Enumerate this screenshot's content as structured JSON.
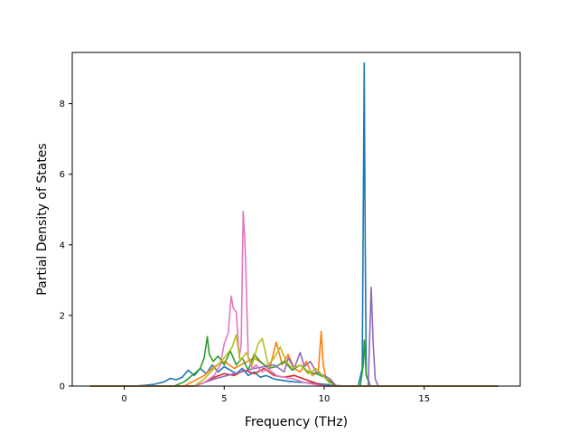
{
  "chart_data": {
    "type": "line",
    "title": "",
    "xlabel": "Frequency (THz)",
    "ylabel": "Partial Density of States",
    "xlim": [
      -2.6,
      19.8
    ],
    "ylim": [
      0,
      9.45
    ],
    "xticks": [
      0,
      5,
      10,
      15
    ],
    "yticks": [
      0,
      2,
      4,
      6,
      8
    ],
    "grid": false,
    "legend": "none",
    "series": [
      {
        "color": "#1f77b4",
        "x": [
          -1.7,
          0.5,
          1.0,
          1.5,
          2.0,
          2.3,
          2.6,
          2.9,
          3.2,
          3.5,
          3.8,
          4.1,
          4.4,
          4.7,
          5.0,
          5.3,
          5.6,
          5.9,
          6.2,
          6.5,
          6.8,
          7.1,
          7.5,
          8.0,
          8.5,
          9.0,
          9.5,
          10.0,
          10.5,
          11.0,
          11.7,
          11.9,
          12.0,
          12.05,
          12.1,
          12.2,
          12.3,
          12.6,
          18.7
        ],
        "y": [
          0,
          0,
          0.02,
          0.05,
          0.12,
          0.22,
          0.18,
          0.25,
          0.45,
          0.3,
          0.5,
          0.35,
          0.6,
          0.4,
          0.55,
          0.45,
          0.35,
          0.5,
          0.3,
          0.4,
          0.25,
          0.3,
          0.2,
          0.15,
          0.12,
          0.1,
          0.08,
          0.05,
          0.02,
          0,
          0,
          0.5,
          9.15,
          4.0,
          0.3,
          0.2,
          0,
          0,
          0
        ]
      },
      {
        "color": "#ff7f0e",
        "x": [
          -1.7,
          3.0,
          3.5,
          4.0,
          4.5,
          5.0,
          5.5,
          6.0,
          6.5,
          7.0,
          7.3,
          7.6,
          7.9,
          8.2,
          8.5,
          8.8,
          9.1,
          9.4,
          9.7,
          9.85,
          9.95,
          10.1,
          10.3,
          10.6,
          18.7
        ],
        "y": [
          0,
          0,
          0.15,
          0.3,
          0.55,
          0.7,
          0.5,
          0.65,
          0.8,
          0.6,
          0.55,
          1.25,
          0.6,
          0.9,
          0.5,
          0.4,
          0.7,
          0.3,
          0.4,
          1.55,
          0.6,
          0.2,
          0.15,
          0,
          0
        ]
      },
      {
        "color": "#2ca02c",
        "x": [
          -1.7,
          2.5,
          3.0,
          3.5,
          3.8,
          4.0,
          4.15,
          4.25,
          4.45,
          4.7,
          5.0,
          5.3,
          5.6,
          5.9,
          6.2,
          6.5,
          6.8,
          7.2,
          7.6,
          8.0,
          8.4,
          8.8,
          9.2,
          9.6,
          10.0,
          10.6,
          11.8,
          11.95,
          12.0,
          12.1,
          12.3,
          18.7
        ],
        "y": [
          0,
          0,
          0.12,
          0.35,
          0.5,
          0.8,
          1.4,
          0.9,
          0.7,
          0.85,
          0.6,
          1.0,
          0.6,
          0.8,
          0.45,
          0.9,
          0.7,
          0.5,
          0.55,
          0.7,
          0.45,
          0.6,
          0.4,
          0.35,
          0.25,
          0,
          0,
          0.6,
          1.3,
          0.3,
          0,
          0
        ]
      },
      {
        "color": "#d62728",
        "x": [
          -1.7,
          3.5,
          4.0,
          4.5,
          5.0,
          5.5,
          6.0,
          6.5,
          7.0,
          7.5,
          8.0,
          8.5,
          9.0,
          9.5,
          10.0,
          18.7
        ],
        "y": [
          0,
          0,
          0.1,
          0.25,
          0.35,
          0.3,
          0.45,
          0.35,
          0.5,
          0.3,
          0.25,
          0.3,
          0.2,
          0.1,
          0,
          0
        ]
      },
      {
        "color": "#9467bd",
        "x": [
          -1.7,
          3.5,
          4.5,
          5.5,
          6.5,
          7.5,
          8.0,
          8.2,
          8.5,
          8.8,
          9.0,
          9.3,
          9.6,
          10.0,
          10.3,
          10.6,
          12.2,
          12.35,
          12.45,
          12.55,
          12.7,
          18.7
        ],
        "y": [
          0,
          0,
          0.2,
          0.35,
          0.5,
          0.6,
          0.4,
          0.8,
          0.5,
          0.95,
          0.55,
          0.7,
          0.4,
          0.3,
          0.2,
          0,
          0,
          2.8,
          1.2,
          0.2,
          0,
          0
        ]
      },
      {
        "color": "#e377c2",
        "x": [
          -1.7,
          3.5,
          4.0,
          4.5,
          4.8,
          5.0,
          5.2,
          5.35,
          5.45,
          5.6,
          5.75,
          5.85,
          5.95,
          6.05,
          6.2,
          6.4,
          6.6,
          6.9,
          7.2,
          7.6,
          8.0,
          8.5,
          9.0,
          10.0,
          18.7
        ],
        "y": [
          0,
          0,
          0.1,
          0.3,
          0.6,
          1.2,
          1.5,
          2.55,
          2.2,
          2.1,
          0.8,
          1.2,
          4.95,
          3.9,
          0.8,
          0.5,
          0.6,
          0.4,
          0.5,
          0.3,
          0.25,
          0.2,
          0.1,
          0,
          0
        ]
      },
      {
        "color": "#bcbd22",
        "x": [
          -1.7,
          3.5,
          4.0,
          4.5,
          5.0,
          5.4,
          5.6,
          5.8,
          6.1,
          6.4,
          6.7,
          6.9,
          7.2,
          7.5,
          7.8,
          8.1,
          8.4,
          8.8,
          9.2,
          9.6,
          10.0,
          10.4,
          18.7
        ],
        "y": [
          0,
          0,
          0.2,
          0.5,
          0.8,
          1.1,
          1.45,
          0.7,
          0.95,
          0.6,
          1.2,
          1.35,
          0.6,
          0.8,
          1.1,
          0.7,
          0.5,
          0.6,
          0.35,
          0.5,
          0.25,
          0,
          0
        ]
      }
    ]
  }
}
